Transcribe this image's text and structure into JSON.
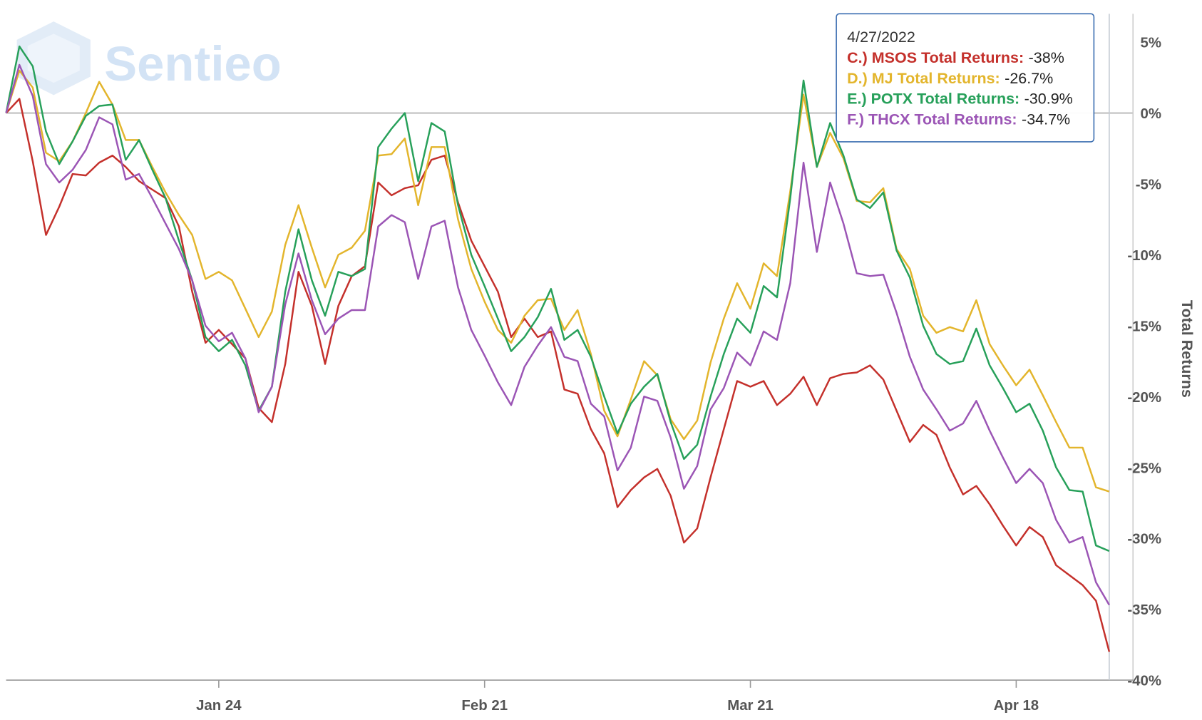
{
  "chart_data": {
    "type": "line",
    "watermark": "Sentieo",
    "y_label": "Total Returns",
    "categories": [
      null,
      null,
      null,
      null,
      null,
      null,
      null,
      null,
      null,
      null,
      null,
      null,
      null,
      null,
      null,
      null,
      "Jan 24",
      null,
      null,
      null,
      null,
      null,
      null,
      null,
      null,
      null,
      null,
      null,
      null,
      null,
      null,
      null,
      null,
      null,
      null,
      null,
      "Feb 21",
      null,
      null,
      null,
      null,
      null,
      null,
      null,
      null,
      null,
      null,
      null,
      null,
      null,
      null,
      null,
      null,
      null,
      null,
      null,
      "Mar 21",
      null,
      null,
      null,
      null,
      null,
      null,
      null,
      null,
      null,
      null,
      null,
      null,
      null,
      null,
      null,
      null,
      null,
      null,
      null,
      "Apr 18",
      null,
      null,
      null,
      null,
      null,
      null,
      null
    ],
    "ylim": [
      -40,
      7
    ],
    "yticks": [
      {
        "value": 5,
        "label": "5%"
      },
      {
        "value": 0,
        "label": "0%"
      },
      {
        "value": -5,
        "label": "-5%"
      },
      {
        "value": -10,
        "label": "-10%"
      },
      {
        "value": -15,
        "label": "-15%"
      },
      {
        "value": -20,
        "label": "-20%"
      },
      {
        "value": -25,
        "label": "-25%"
      },
      {
        "value": -30,
        "label": "-30%"
      },
      {
        "value": -35,
        "label": "-35%"
      },
      {
        "value": -40,
        "label": "-40%"
      }
    ],
    "zero_line": true,
    "series": [
      {
        "name": "C.) MSOS Total Returns:",
        "color": "#c4302b",
        "values": [
          0,
          1,
          -3.4,
          -8.6,
          -6.6,
          -4.3,
          -4.4,
          -3.5,
          -3,
          -3.8,
          -4.8,
          -5.4,
          -6,
          -8,
          -12.6,
          -16.2,
          -15.3,
          -16.3,
          -17.3,
          -20.8,
          -21.8,
          -17.7,
          -11.2,
          -13.6,
          -17.7,
          -13.6,
          -11.5,
          -10.8,
          -4.9,
          -5.8,
          -5.3,
          -5.1,
          -3.3,
          -3,
          -6.3,
          -9,
          -10.8,
          -12.6,
          -15.8,
          -14.5,
          -15.8,
          -15.4,
          -19.5,
          -19.8,
          -22.3,
          -24,
          -27.8,
          -26.6,
          -25.7,
          -25.1,
          -27,
          -30.3,
          -29.3,
          -25.7,
          -22.3,
          -18.9,
          -19.3,
          -18.9,
          -20.6,
          -19.8,
          -18.6,
          -20.6,
          -18.7,
          -18.4,
          -18.3,
          -17.8,
          -18.8,
          -21,
          -23.2,
          -22,
          -22.7,
          -25,
          -26.9,
          -26.3,
          -27.6,
          -29.1,
          -30.5,
          -29.2,
          -29.9,
          -31.9,
          -32.6,
          -33.3,
          -34.4,
          -38
        ]
      },
      {
        "name": "D.) MJ Total Returns:",
        "color": "#e3b52c",
        "values": [
          0,
          3,
          1.8,
          -2.8,
          -3.4,
          -2,
          0,
          2.2,
          0.6,
          -1.9,
          -1.9,
          -3.8,
          -5.6,
          -7.2,
          -8.6,
          -11.7,
          -11.2,
          -11.8,
          -13.8,
          -15.8,
          -14,
          -9.3,
          -6.5,
          -9.5,
          -12.3,
          -10,
          -9.5,
          -8.3,
          -3,
          -2.9,
          -1.8,
          -6.5,
          -2.4,
          -2.4,
          -7.5,
          -11,
          -13.3,
          -15.3,
          -16.2,
          -14.3,
          -13.2,
          -13.1,
          -15.3,
          -13.9,
          -17,
          -21,
          -22.8,
          -20.2,
          -17.5,
          -18.5,
          -21.6,
          -23,
          -21.7,
          -17.6,
          -14.5,
          -12,
          -13.8,
          -10.6,
          -11.5,
          -5.5,
          1.3,
          -3.8,
          -1.4,
          -3.2,
          -6.2,
          -6.3,
          -5.3,
          -9.6,
          -11,
          -14.3,
          -15.5,
          -15.1,
          -15.4,
          -13.2,
          -16.3,
          -17.8,
          -19.2,
          -18.1,
          -19.9,
          -21.8,
          -23.6,
          -23.6,
          -26.4,
          -26.7
        ]
      },
      {
        "name": "E.) POTX Total Returns:",
        "color": "#27a05a",
        "values": [
          0,
          4.7,
          3.3,
          -1.3,
          -3.6,
          -2,
          -0.2,
          0.5,
          0.6,
          -3.3,
          -1.9,
          -4,
          -6,
          -9,
          -11.8,
          -15.8,
          -16.8,
          -16,
          -17.8,
          -21,
          -19.3,
          -12.6,
          -8.2,
          -11.8,
          -14.3,
          -11.2,
          -11.5,
          -11,
          -2.4,
          -1.1,
          0,
          -4.8,
          -0.7,
          -1.3,
          -6.5,
          -10,
          -12.2,
          -14.5,
          -16.8,
          -15.8,
          -14.4,
          -12.4,
          -16,
          -15.3,
          -17.2,
          -20,
          -22.6,
          -20.5,
          -19.3,
          -18.4,
          -21.8,
          -24.4,
          -23.4,
          -20,
          -17,
          -14.5,
          -15.5,
          -12.2,
          -13,
          -6,
          2.3,
          -3.8,
          -0.7,
          -3,
          -6.1,
          -6.7,
          -5.6,
          -9.7,
          -11.6,
          -15,
          -17,
          -17.7,
          -17.5,
          -15.2,
          -17.8,
          -19.4,
          -21.1,
          -20.5,
          -22.4,
          -25,
          -26.6,
          -26.7,
          -30.5,
          -30.9
        ]
      },
      {
        "name": "F.) THCX Total Returns:",
        "color": "#9b55b5",
        "values": [
          0,
          3.4,
          1.2,
          -3.6,
          -4.9,
          -4,
          -2.6,
          -0.3,
          -0.8,
          -4.7,
          -4.3,
          -6,
          -7.8,
          -9.6,
          -11.8,
          -15,
          -16.1,
          -15.5,
          -17.3,
          -21.1,
          -19.3,
          -13.5,
          -9.9,
          -13.2,
          -15.6,
          -14.5,
          -13.9,
          -13.9,
          -8,
          -7.2,
          -7.7,
          -11.7,
          -8,
          -7.6,
          -12.3,
          -15.3,
          -17.1,
          -19,
          -20.6,
          -17.9,
          -16.4,
          -15.1,
          -17.2,
          -17.5,
          -20.5,
          -21.4,
          -25.2,
          -23.6,
          -20,
          -20.3,
          -22.9,
          -26.5,
          -24.9,
          -20.9,
          -19.4,
          -16.9,
          -17.8,
          -15.4,
          -16,
          -12,
          -3.5,
          -9.8,
          -4.9,
          -7.8,
          -11.3,
          -11.5,
          -11.4,
          -14.1,
          -17.2,
          -19.5,
          -20.9,
          -22.4,
          -21.9,
          -20.3,
          -22.4,
          -24.3,
          -26.1,
          -25.1,
          -26.1,
          -28.7,
          -30.3,
          -29.9,
          -33.1,
          -34.7
        ]
      }
    ],
    "tooltip": {
      "title": "4/27/2022",
      "value_labels": [
        "-38%",
        "-26.7%",
        "-30.9%",
        "-34.7%"
      ]
    }
  }
}
